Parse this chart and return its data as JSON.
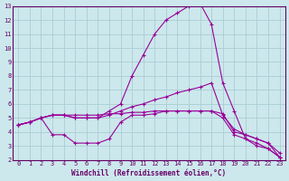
{
  "xlabel": "Windchill (Refroidissement éolien,°C)",
  "bg_color": "#cce8ec",
  "grid_color": "#aacdd4",
  "line_color": "#990099",
  "text_color": "#660066",
  "xlim": [
    -0.5,
    23.5
  ],
  "ylim": [
    2,
    13
  ],
  "xticks": [
    0,
    1,
    2,
    3,
    4,
    5,
    6,
    7,
    8,
    9,
    10,
    11,
    12,
    13,
    14,
    15,
    16,
    17,
    18,
    19,
    20,
    21,
    22,
    23
  ],
  "yticks": [
    2,
    3,
    4,
    5,
    6,
    7,
    8,
    9,
    10,
    11,
    12,
    13
  ],
  "series": [
    {
      "x": [
        0,
        1,
        2,
        3,
        4,
        5,
        6,
        7,
        8,
        9,
        10,
        11,
        12,
        13,
        14,
        15,
        16,
        17,
        18,
        19,
        20,
        21,
        22,
        23
      ],
      "y": [
        4.5,
        4.7,
        5.0,
        5.2,
        5.2,
        5.0,
        5.0,
        5.0,
        5.5,
        6.0,
        8.0,
        9.5,
        11.0,
        12.0,
        12.5,
        13.0,
        13.2,
        11.7,
        7.5,
        5.5,
        3.5,
        3.0,
        2.8,
        2.2
      ]
    },
    {
      "x": [
        0,
        1,
        2,
        3,
        4,
        5,
        6,
        7,
        8,
        9,
        10,
        11,
        12,
        13,
        14,
        15,
        16,
        17,
        18,
        19,
        20,
        21,
        22,
        23
      ],
      "y": [
        4.5,
        4.7,
        5.0,
        5.2,
        5.2,
        5.0,
        5.0,
        5.0,
        5.2,
        5.5,
        5.8,
        6.0,
        6.3,
        6.5,
        6.8,
        7.0,
        7.2,
        7.5,
        5.2,
        4.2,
        3.8,
        3.5,
        3.2,
        2.2
      ]
    },
    {
      "x": [
        0,
        1,
        2,
        3,
        4,
        5,
        6,
        7,
        8,
        9,
        10,
        11,
        12,
        13,
        14,
        15,
        16,
        17,
        18,
        19,
        20,
        21,
        22,
        23
      ],
      "y": [
        4.5,
        4.7,
        5.0,
        5.2,
        5.2,
        5.2,
        5.2,
        5.2,
        5.3,
        5.3,
        5.4,
        5.4,
        5.5,
        5.5,
        5.5,
        5.5,
        5.5,
        5.5,
        5.3,
        4.0,
        3.8,
        3.5,
        3.2,
        2.5
      ]
    },
    {
      "x": [
        0,
        1,
        2,
        3,
        4,
        5,
        6,
        7,
        8,
        9,
        10,
        11,
        12,
        13,
        14,
        15,
        16,
        17,
        18,
        19,
        20,
        21,
        22,
        23
      ],
      "y": [
        4.5,
        4.7,
        5.0,
        3.8,
        3.8,
        3.2,
        3.2,
        3.2,
        3.5,
        4.7,
        5.2,
        5.2,
        5.3,
        5.5,
        5.5,
        5.5,
        5.5,
        5.5,
        5.0,
        3.8,
        3.5,
        3.2,
        2.8,
        2.2
      ]
    }
  ]
}
